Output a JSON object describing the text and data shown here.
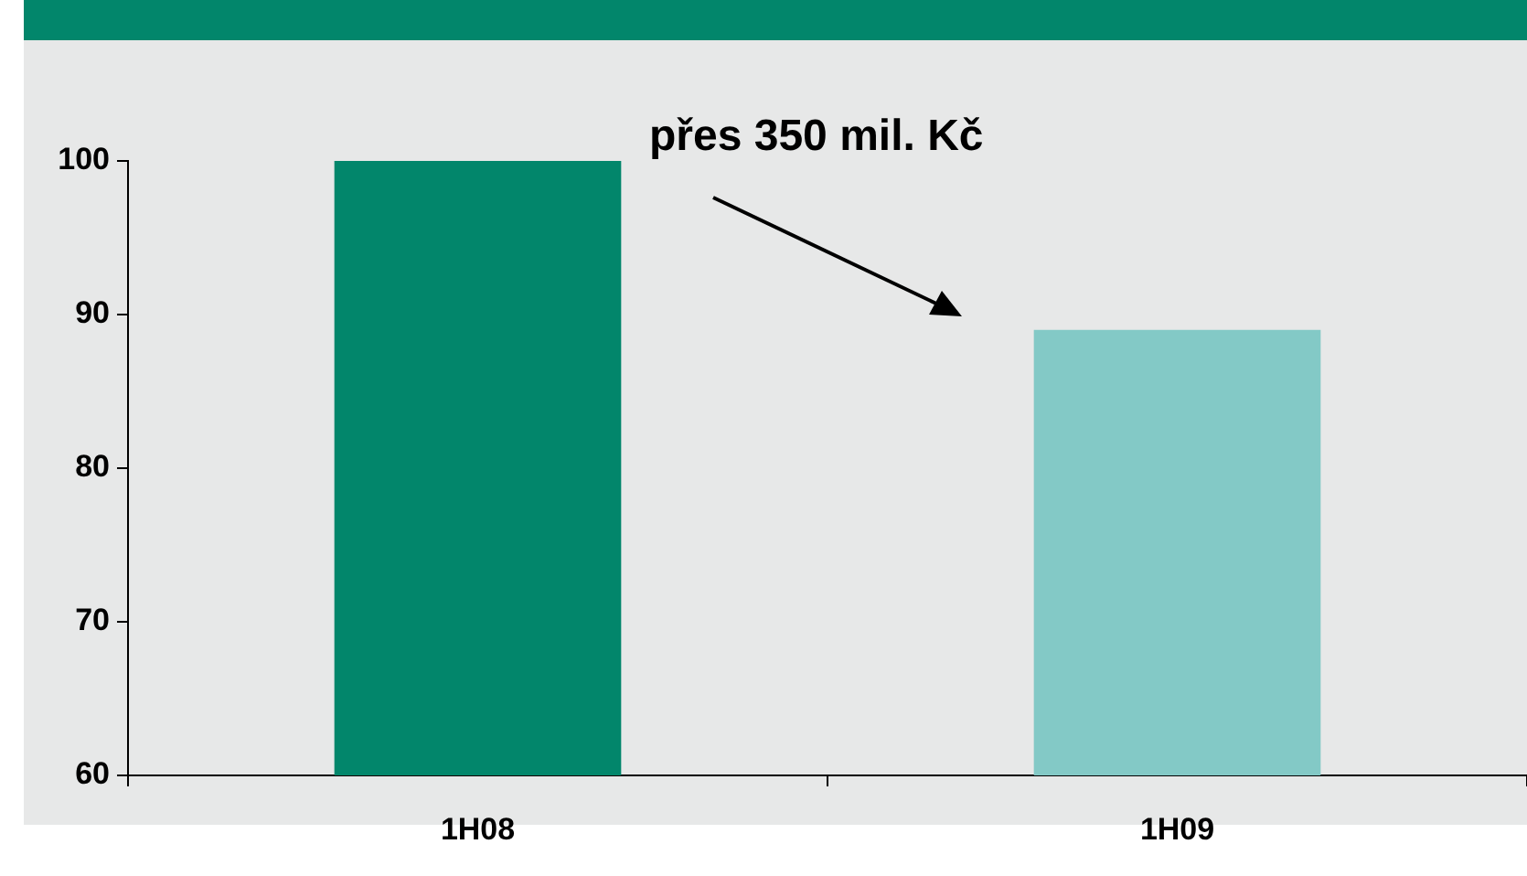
{
  "chart_data": {
    "type": "bar",
    "categories": [
      "1H08",
      "1H09"
    ],
    "values": [
      100,
      89
    ],
    "colors": [
      "#02866b",
      "#83c9c6"
    ],
    "ylim": [
      60,
      100
    ],
    "yticks": [
      60,
      70,
      80,
      90,
      100
    ],
    "grid": false,
    "legend": false,
    "annotations": [
      "přes 350 mil. Kč"
    ]
  }
}
